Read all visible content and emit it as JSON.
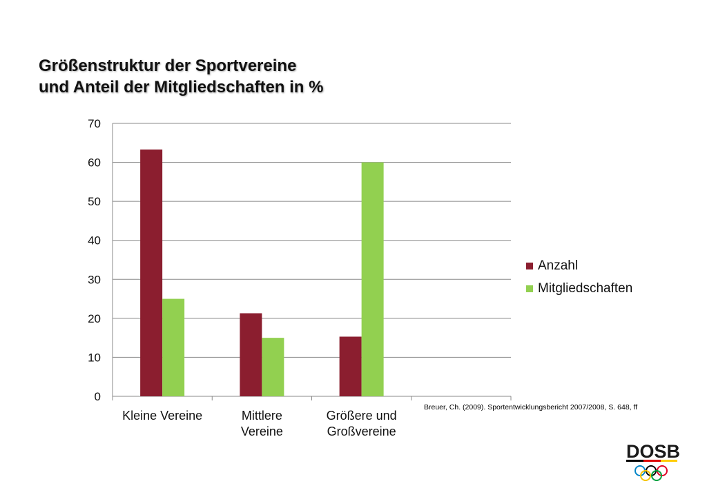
{
  "title_lines": [
    "Größenstruktur der Sportvereine",
    "und Anteil der Mitgliedschaften in %"
  ],
  "source_note": "Breuer, Ch. (2009). Sportentwicklungsbericht 2007/2008, S. 648, ff",
  "logo_text": "DOSB",
  "chart_data": {
    "type": "bar",
    "categories": [
      [
        "Kleine Vereine"
      ],
      [
        "Mittlere",
        "Vereine"
      ],
      [
        "Größere und",
        "Großvereine"
      ],
      [
        ""
      ]
    ],
    "series": [
      {
        "name": "Anzahl",
        "color": "#8b1e2f",
        "values": [
          63.3,
          21.3,
          15.3,
          null
        ]
      },
      {
        "name": "Mitgliedschaften",
        "color": "#92d050",
        "values": [
          25,
          15,
          60,
          null
        ]
      }
    ],
    "ylim": [
      0,
      70
    ],
    "yticks": [
      0,
      10,
      20,
      30,
      40,
      50,
      60,
      70
    ],
    "grid": true,
    "legend": "right"
  }
}
